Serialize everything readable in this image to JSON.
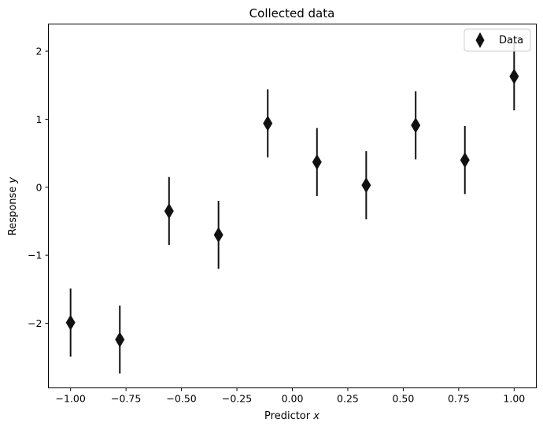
{
  "chart_data": {
    "type": "scatter",
    "title": "Collected data",
    "xlabel": "Predictor",
    "xlabel_var": "x",
    "ylabel": "Response",
    "ylabel_var": "y",
    "xlim": [
      -1.1,
      1.1
    ],
    "ylim": [
      -2.95,
      2.4
    ],
    "xticks": [
      -1.0,
      -0.75,
      -0.5,
      -0.25,
      0.0,
      0.25,
      0.5,
      0.75,
      1.0
    ],
    "xtick_labels": [
      "−1.00",
      "−0.75",
      "−0.50",
      "−0.25",
      "0.00",
      "0.25",
      "0.50",
      "0.75",
      "1.00"
    ],
    "yticks": [
      -2,
      -1,
      0,
      1,
      2
    ],
    "ytick_labels": [
      "−2",
      "−1",
      "0",
      "1",
      "2"
    ],
    "grid": false,
    "legend": {
      "position": "top-right",
      "entries": [
        "Data"
      ]
    },
    "series": [
      {
        "name": "Data",
        "marker": "thin-diamond",
        "color": "#111111",
        "x": [
          -1.0,
          -0.778,
          -0.556,
          -0.333,
          -0.111,
          0.111,
          0.333,
          0.556,
          0.778,
          1.0
        ],
        "y": [
          -1.99,
          -2.24,
          -0.35,
          -0.7,
          0.94,
          0.37,
          0.03,
          0.91,
          0.4,
          1.63
        ],
        "yerr": [
          0.5,
          0.5,
          0.5,
          0.5,
          0.5,
          0.5,
          0.5,
          0.5,
          0.5,
          0.5
        ]
      }
    ]
  }
}
